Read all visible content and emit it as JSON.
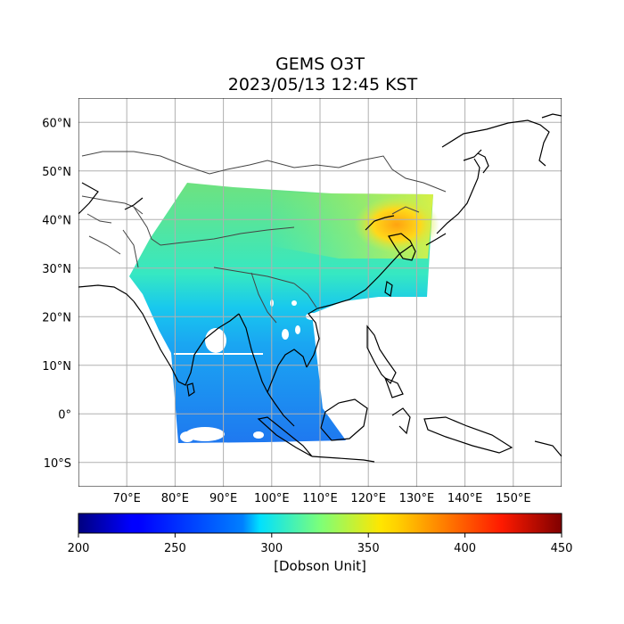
{
  "title": {
    "line1": "GEMS O3T",
    "line2": "2023/05/13 12:45 KST"
  },
  "map": {
    "lon_range": [
      60,
      160
    ],
    "lat_range": [
      -15,
      65
    ],
    "lon_ticks": [
      {
        "value": 70,
        "label": "70°E"
      },
      {
        "value": 80,
        "label": "80°E"
      },
      {
        "value": 90,
        "label": "90°E"
      },
      {
        "value": 100,
        "label": "100°E"
      },
      {
        "value": 110,
        "label": "110°E"
      },
      {
        "value": 120,
        "label": "120°E"
      },
      {
        "value": 130,
        "label": "130°E"
      },
      {
        "value": 140,
        "label": "140°E"
      },
      {
        "value": 150,
        "label": "150°E"
      }
    ],
    "lat_ticks": [
      {
        "value": 60,
        "label": "60°N"
      },
      {
        "value": 50,
        "label": "50°N"
      },
      {
        "value": 40,
        "label": "40°N"
      },
      {
        "value": 30,
        "label": "30°N"
      },
      {
        "value": 20,
        "label": "20°N"
      },
      {
        "value": 10,
        "label": "10°N"
      },
      {
        "value": 0,
        "label": "0°"
      },
      {
        "value": -10,
        "label": "10°S"
      }
    ],
    "grid": true,
    "coastline_color": "#000000",
    "border_color": "#444444"
  },
  "colorbar": {
    "min": 200,
    "max": 450,
    "ticks": [
      {
        "value": 200,
        "label": "200"
      },
      {
        "value": 250,
        "label": "250"
      },
      {
        "value": 300,
        "label": "300"
      },
      {
        "value": 350,
        "label": "350"
      },
      {
        "value": 400,
        "label": "400"
      },
      {
        "value": 450,
        "label": "450"
      }
    ],
    "label": "[Dobson Unit]",
    "colormap": "jet"
  }
}
